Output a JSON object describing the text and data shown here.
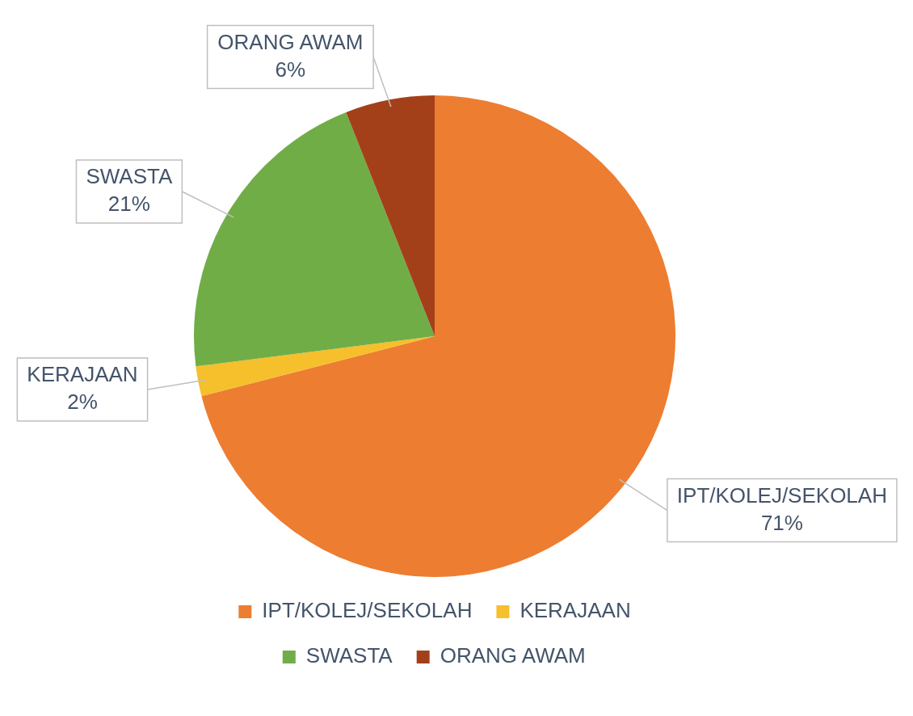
{
  "chart_data": {
    "type": "pie",
    "categories": [
      "IPT/KOLEJ/SEKOLAH",
      "KERAJAAN",
      "SWASTA",
      "ORANG AWAM"
    ],
    "values": [
      71,
      2,
      21,
      6
    ],
    "colors": [
      "#ed7d31",
      "#f5c02c",
      "#70ad47",
      "#a3401a"
    ],
    "value_labels": [
      "71%",
      "2%",
      "21%",
      "6%"
    ],
    "legend": "bottom"
  }
}
